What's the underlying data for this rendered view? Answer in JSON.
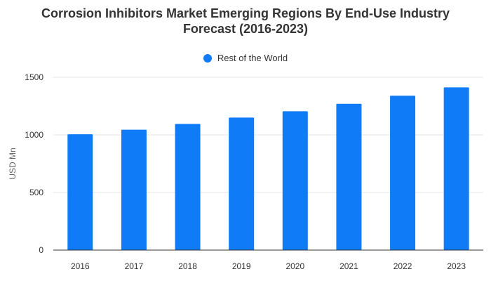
{
  "chart_data": {
    "type": "bar",
    "title_line1": "Corrosion Inhibitors Market Emerging Regions By End-Use Industry",
    "title_line2": "Forecast (2016-2023)",
    "xlabel": "",
    "ylabel": "USD Mn",
    "categories": [
      "2016",
      "2017",
      "2018",
      "2019",
      "2020",
      "2021",
      "2022",
      "2023"
    ],
    "series": [
      {
        "name": "Rest of the World",
        "values": [
          1005,
          1045,
          1095,
          1150,
          1205,
          1270,
          1340,
          1412
        ]
      }
    ],
    "ylim": [
      0,
      1500
    ],
    "yticks": [
      0,
      500,
      1000,
      1500
    ],
    "grid": true,
    "legend_position": "top-center",
    "colors": {
      "bar": "#0f7bf7",
      "grid": "#e6e6e6",
      "axis": "#333333"
    }
  }
}
